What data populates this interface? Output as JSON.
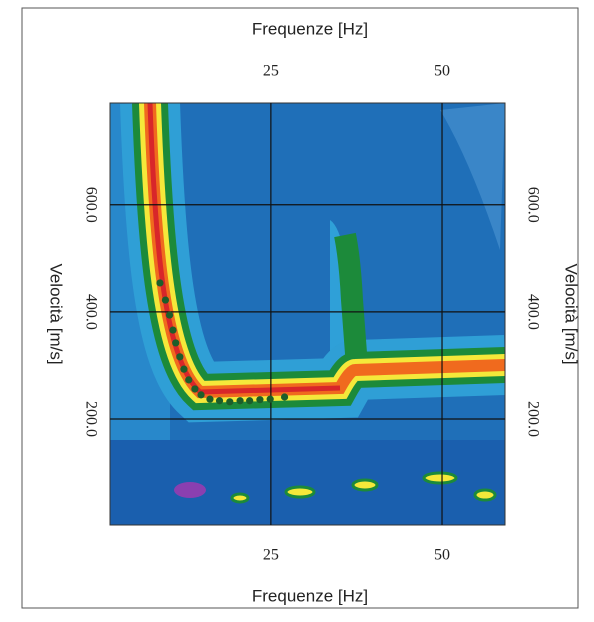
{
  "chart_data": {
    "type": "scatter",
    "xlabel": "Frequenze [Hz]",
    "ylabel": "Velocità [m/s]",
    "xlim": [
      1.5,
      59.2
    ],
    "ylim": [
      2,
      790
    ],
    "xticks": [
      25,
      50
    ],
    "yticks": [
      {
        "value": 200,
        "label": "200.0"
      },
      {
        "value": 400,
        "label": "400.0"
      },
      {
        "value": 600,
        "label": "600.0"
      }
    ],
    "grid": true,
    "series": [
      {
        "color": "#1d5e2a",
        "x": [
          8.8,
          9.6,
          10.2,
          10.7,
          11.1,
          11.7,
          12.3,
          13.0,
          13.9,
          14.8,
          16.1,
          17.5,
          19.0,
          20.5,
          21.9,
          23.4,
          24.9,
          27.0
        ],
        "values": [
          454,
          422,
          394,
          366,
          342,
          316,
          293,
          273,
          256,
          245,
          237,
          234,
          232,
          234,
          234,
          236,
          237,
          241
        ]
      }
    ]
  }
}
